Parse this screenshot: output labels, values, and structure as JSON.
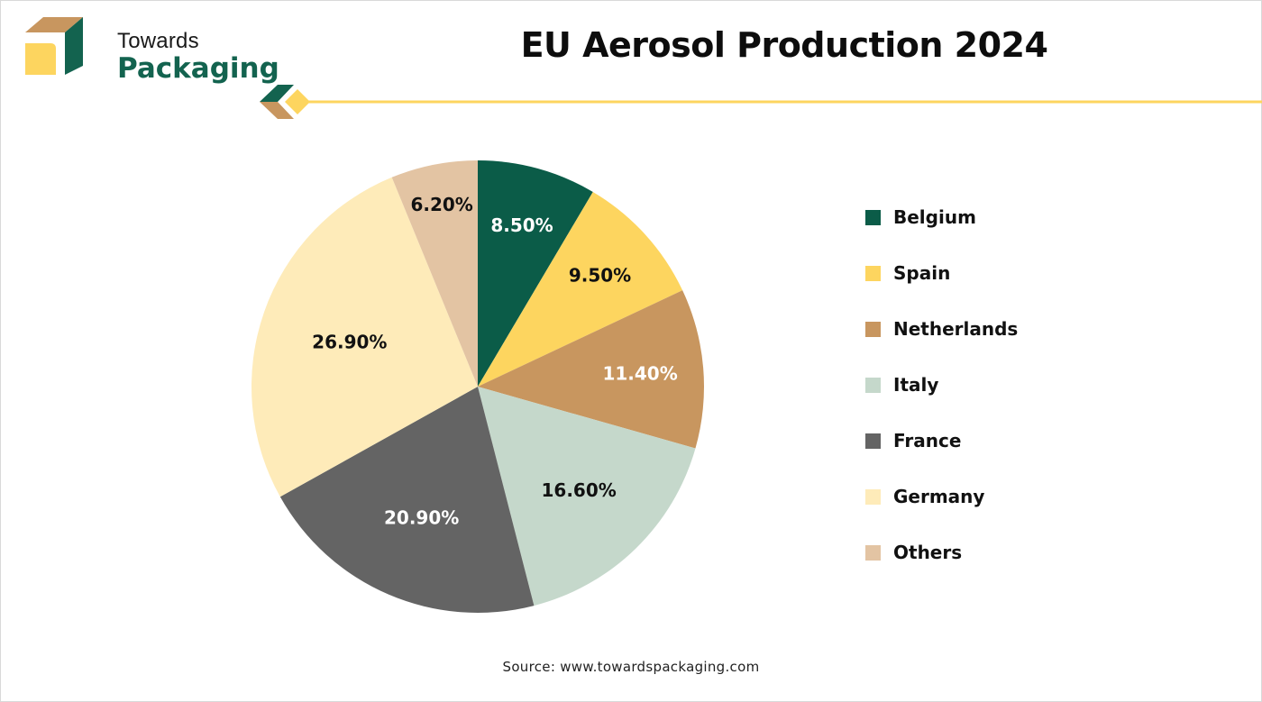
{
  "brand": {
    "name_top": "Towards",
    "name_bottom": "Packaging",
    "colors": {
      "green": "#13634f",
      "tan": "#c8965f",
      "yellow": "#fdd55f"
    }
  },
  "header": {
    "title": "EU Aerosol Production 2024"
  },
  "footer": {
    "source": "Source: www.towardspackaging.com"
  },
  "chart_data": {
    "type": "pie",
    "title": "EU Aerosol Production 2024",
    "categories": [
      "Belgium",
      "Spain",
      "Netherlands",
      "Italy",
      "France",
      "Germany",
      "Others"
    ],
    "values": [
      8.5,
      9.5,
      11.4,
      16.6,
      20.9,
      26.9,
      6.2
    ],
    "labels": [
      "8.50%",
      "9.50%",
      "11.40%",
      "16.60%",
      "20.90%",
      "26.90%",
      "6.20%"
    ],
    "colors": [
      "#0b5c48",
      "#fdd55f",
      "#c8965f",
      "#c5d8cb",
      "#646464",
      "#feebb9",
      "#e3c4a3"
    ],
    "label_colors": [
      "#ffffff",
      "#111111",
      "#ffffff",
      "#111111",
      "#ffffff",
      "#111111",
      "#111111"
    ],
    "start_angle_deg": 0,
    "direction": "clockwise",
    "legend_position": "right",
    "unit": "%"
  },
  "legend": {
    "items": [
      {
        "label": "Belgium",
        "color": "#0b5c48"
      },
      {
        "label": "Spain",
        "color": "#fdd55f"
      },
      {
        "label": "Netherlands",
        "color": "#c8965f"
      },
      {
        "label": "Italy",
        "color": "#c5d8cb"
      },
      {
        "label": "France",
        "color": "#646464"
      },
      {
        "label": "Germany",
        "color": "#feebb9"
      },
      {
        "label": "Others",
        "color": "#e3c4a3"
      }
    ]
  }
}
